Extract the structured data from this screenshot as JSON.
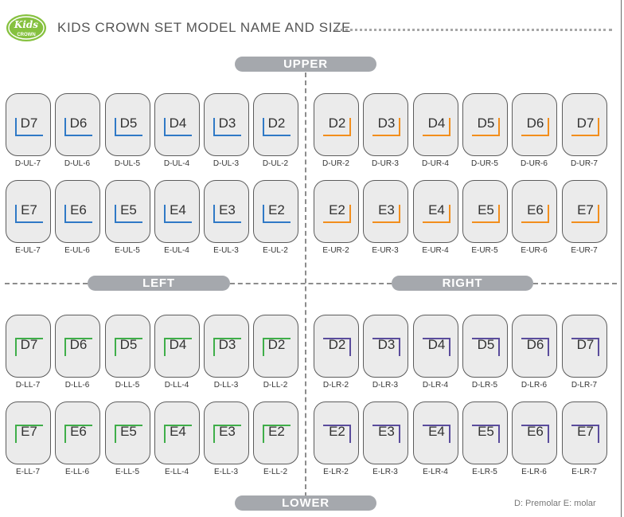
{
  "header": {
    "logo_text": "Kids CROWN",
    "title": "KIDS CROWN SET MODEL NAME AND SIZE"
  },
  "sections": {
    "upper": "UPPER",
    "lower": "LOWER",
    "left": "LEFT",
    "right": "RIGHT"
  },
  "colors": {
    "upper_left": "#2f79c6",
    "upper_right": "#f28e1c",
    "lower_left": "#3fae49",
    "lower_right": "#5a4c9c"
  },
  "quadrants": {
    "upper_left": {
      "premolar": [
        {
          "label": "D7",
          "code": "D-UL-7"
        },
        {
          "label": "D6",
          "code": "D-UL-6"
        },
        {
          "label": "D5",
          "code": "D-UL-5"
        },
        {
          "label": "D4",
          "code": "D-UL-4"
        },
        {
          "label": "D3",
          "code": "D-UL-3"
        },
        {
          "label": "D2",
          "code": "D-UL-2"
        }
      ],
      "molar": [
        {
          "label": "E7",
          "code": "E-UL-7"
        },
        {
          "label": "E6",
          "code": "E-UL-6"
        },
        {
          "label": "E5",
          "code": "E-UL-5"
        },
        {
          "label": "E4",
          "code": "E-UL-4"
        },
        {
          "label": "E3",
          "code": "E-UL-3"
        },
        {
          "label": "E2",
          "code": "E-UL-2"
        }
      ]
    },
    "upper_right": {
      "premolar": [
        {
          "label": "D2",
          "code": "D-UR-2"
        },
        {
          "label": "D3",
          "code": "D-UR-3"
        },
        {
          "label": "D4",
          "code": "D-UR-4"
        },
        {
          "label": "D5",
          "code": "D-UR-5"
        },
        {
          "label": "D6",
          "code": "D-UR-6"
        },
        {
          "label": "D7",
          "code": "D-UR-7"
        }
      ],
      "molar": [
        {
          "label": "E2",
          "code": "E-UR-2"
        },
        {
          "label": "E3",
          "code": "E-UR-3"
        },
        {
          "label": "E4",
          "code": "E-UR-4"
        },
        {
          "label": "E5",
          "code": "E-UR-5"
        },
        {
          "label": "E6",
          "code": "E-UR-6"
        },
        {
          "label": "E7",
          "code": "E-UR-7"
        }
      ]
    },
    "lower_left": {
      "premolar": [
        {
          "label": "D7",
          "code": "D-LL-7"
        },
        {
          "label": "D6",
          "code": "D-LL-6"
        },
        {
          "label": "D5",
          "code": "D-LL-5"
        },
        {
          "label": "D4",
          "code": "D-LL-4"
        },
        {
          "label": "D3",
          "code": "D-LL-3"
        },
        {
          "label": "D2",
          "code": "D-LL-2"
        }
      ],
      "molar": [
        {
          "label": "E7",
          "code": "E-LL-7"
        },
        {
          "label": "E6",
          "code": "E-LL-6"
        },
        {
          "label": "E5",
          "code": "E-LL-5"
        },
        {
          "label": "E4",
          "code": "E-LL-4"
        },
        {
          "label": "E3",
          "code": "E-LL-3"
        },
        {
          "label": "E2",
          "code": "E-LL-2"
        }
      ]
    },
    "lower_right": {
      "premolar": [
        {
          "label": "D2",
          "code": "D-LR-2"
        },
        {
          "label": "D3",
          "code": "D-LR-3"
        },
        {
          "label": "D4",
          "code": "D-LR-4"
        },
        {
          "label": "D5",
          "code": "D-LR-5"
        },
        {
          "label": "D6",
          "code": "D-LR-6"
        },
        {
          "label": "D7",
          "code": "D-LR-7"
        }
      ],
      "molar": [
        {
          "label": "E2",
          "code": "E-LR-2"
        },
        {
          "label": "E3",
          "code": "E-LR-3"
        },
        {
          "label": "E4",
          "code": "E-LR-4"
        },
        {
          "label": "E5",
          "code": "E-LR-5"
        },
        {
          "label": "E6",
          "code": "E-LR-6"
        },
        {
          "label": "E7",
          "code": "E-LR-7"
        }
      ]
    }
  },
  "legend": "D: Premolar  E: molar"
}
